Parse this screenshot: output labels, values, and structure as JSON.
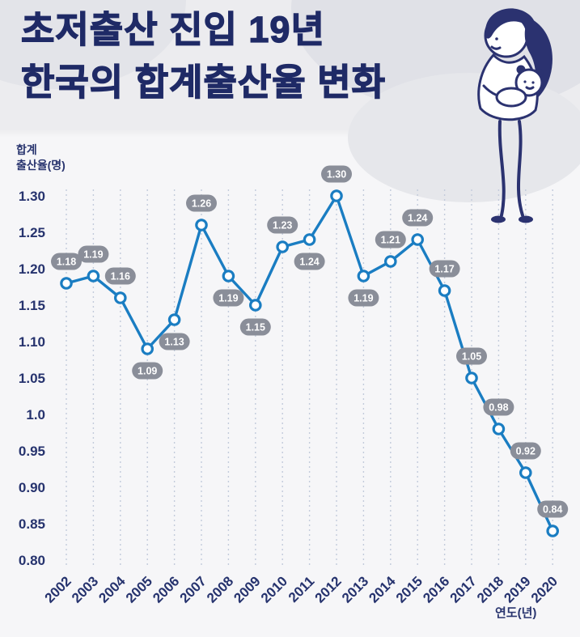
{
  "header": {
    "title_line1": "초저출산 진입 19년",
    "title_line2": "한국의 합계출산율 변화"
  },
  "chart_data": {
    "type": "line",
    "title": "한국의 합계출산율 변화",
    "ylabel": "합계 출산율(명)",
    "ylabel_line1": "합계",
    "ylabel_line2": "출산율(명)",
    "xlabel": "연도(년)",
    "categories": [
      "2002",
      "2003",
      "2004",
      "2005",
      "2006",
      "2007",
      "2008",
      "2009",
      "2010",
      "2011",
      "2012",
      "2013",
      "2014",
      "2015",
      "2016",
      "2017",
      "2018",
      "2019",
      "2020"
    ],
    "values": [
      1.18,
      1.19,
      1.16,
      1.09,
      1.13,
      1.26,
      1.19,
      1.15,
      1.23,
      1.24,
      1.3,
      1.19,
      1.21,
      1.24,
      1.17,
      1.05,
      0.98,
      0.92,
      0.84
    ],
    "point_labels": [
      "1.18",
      "1.19",
      "1.16",
      "1.09",
      "1.13",
      "1.26",
      "1.19",
      "1.15",
      "1.23",
      "1.24",
      "1.30",
      "1.19",
      "1.21",
      "1.24",
      "1.17",
      "1.05",
      "0.98",
      "0.92",
      "0.84"
    ],
    "label_positions": [
      "above",
      "above",
      "above",
      "below",
      "below",
      "above",
      "below",
      "below",
      "above",
      "below",
      "above",
      "below",
      "above",
      "above",
      "above",
      "above",
      "above",
      "above",
      "above"
    ],
    "ylim": [
      0.8,
      1.3
    ],
    "yticks": [
      "1.30",
      "1.25",
      "1.20",
      "1.15",
      "1.10",
      "1.05",
      "1.0",
      "0.95",
      "0.90",
      "0.85",
      "0.80"
    ],
    "ytick_values": [
      1.3,
      1.25,
      1.2,
      1.15,
      1.1,
      1.05,
      1.0,
      0.95,
      0.9,
      0.85,
      0.8
    ],
    "grid": "vertical-dashed",
    "legend": "none",
    "line_color": "#1a7dc2",
    "marker_fill": "#ffffff",
    "badge_color": "#8a8e99",
    "badge_text_color": "#ffffff",
    "axis_text_color": "#26336e",
    "grid_color": "#c3cbdb"
  },
  "colors": {
    "title": "#1f2a66",
    "background": "#f3f3f5"
  }
}
